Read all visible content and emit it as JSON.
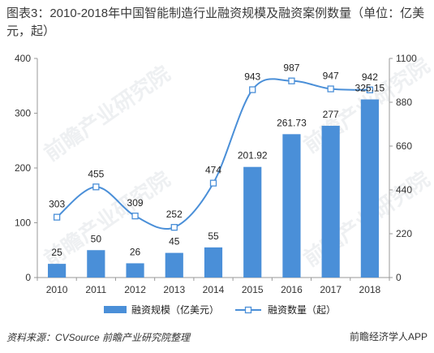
{
  "title": "图表3：2010-2018年中国智能制造行业融资规模及融资案例数量（单位：亿美元，起）",
  "footer": {
    "source": "资料来源：CVSource 前瞻产业研究院整理",
    "brand": "前瞻经济学人APP"
  },
  "watermark": "前瞻产业研究院",
  "colors": {
    "bar": "#4a8fd8",
    "line": "#4a8fd8",
    "axis": "#999999"
  },
  "chart_data": {
    "type": "bar",
    "categories": [
      "2010",
      "2011",
      "2012",
      "2013",
      "2014",
      "2015",
      "2016",
      "2017",
      "2018"
    ],
    "series": [
      {
        "name": "融资规模（亿美元）",
        "type": "bar",
        "axis": "left",
        "values": [
          25,
          50,
          26,
          45,
          55,
          201.92,
          261.73,
          277,
          325.15
        ],
        "labels": [
          "25",
          "50",
          "26",
          "45",
          "55",
          "201.92",
          "261.73",
          "277",
          "325.15"
        ]
      },
      {
        "name": "融资数量（起）",
        "type": "line",
        "axis": "right",
        "values": [
          303,
          455,
          309,
          252,
          474,
          943,
          987,
          947,
          942
        ],
        "labels": [
          "303",
          "455",
          "309",
          "252",
          "474",
          "943",
          "987",
          "947",
          "942"
        ]
      }
    ],
    "y_left": {
      "min": 0,
      "max": 400,
      "ticks": [
        "0",
        "100",
        "200",
        "300",
        "400"
      ]
    },
    "y_right": {
      "min": 0,
      "max": 1100,
      "ticks": [
        "0",
        "220",
        "440",
        "660",
        "880",
        "1100"
      ]
    },
    "legend_position": "bottom",
    "grid": false
  }
}
